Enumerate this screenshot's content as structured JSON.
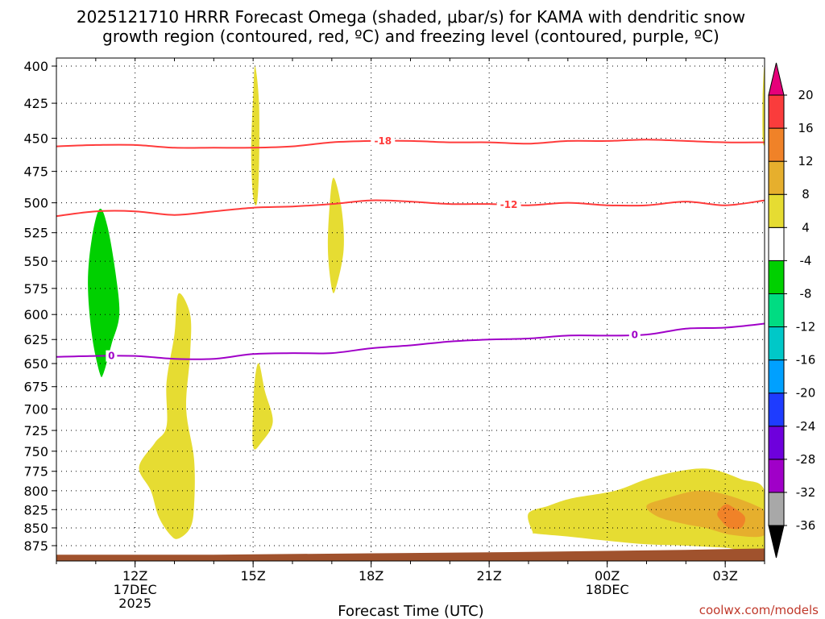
{
  "chart_data": {
    "type": "heatmap",
    "title_lines": [
      "2025121710 HRRR Forecast Omega (shaded, μbar/s) for KAMA with dendritic snow",
      "growth region (contoured, red, ºC) and freezing level (contoured, purple, ºC)"
    ],
    "xlabel": "Forecast Time (UTC)",
    "ylabel": "",
    "x_tick_labels": [
      {
        "lines": [
          "12Z",
          "17DEC",
          "2025"
        ],
        "hour": 2
      },
      {
        "lines": [
          "15Z"
        ],
        "hour": 5
      },
      {
        "lines": [
          "18Z"
        ],
        "hour": 8
      },
      {
        "lines": [
          "21Z"
        ],
        "hour": 11
      },
      {
        "lines": [
          "00Z",
          "18DEC"
        ],
        "hour": 14
      },
      {
        "lines": [
          "03Z"
        ],
        "hour": 17
      }
    ],
    "xlim_hours": [
      0,
      18
    ],
    "y_scale": "log-pressure",
    "ylim_mb": [
      890,
      395
    ],
    "y_ticks": [
      400,
      425,
      450,
      475,
      500,
      525,
      550,
      575,
      600,
      625,
      650,
      675,
      700,
      725,
      750,
      775,
      800,
      825,
      850,
      875
    ],
    "grid": true,
    "colorbar": {
      "levels": [
        -36,
        -32,
        -28,
        -24,
        -20,
        -16,
        -12,
        -8,
        -4,
        4,
        8,
        12,
        16,
        20
      ],
      "colors": [
        "#000000",
        "#a8a8a8",
        "#a000c8",
        "#6e00dc",
        "#1e3cff",
        "#00a0ff",
        "#00c8c8",
        "#00dc82",
        "#00d000",
        "#ffffff",
        "#e6dc32",
        "#e6af2d",
        "#f08228",
        "#fa3c3c",
        "#e6007a"
      ],
      "tick_labels": [
        "-36",
        "-32",
        "-28",
        "-24",
        "-20",
        "-16",
        "-12",
        "-8",
        "-4",
        "4",
        "8",
        "12",
        "16",
        "20"
      ]
    },
    "contours": [
      {
        "label": "-18",
        "color": "#ff3b3b",
        "points": [
          [
            0,
            456
          ],
          [
            1,
            455
          ],
          [
            2,
            455
          ],
          [
            3,
            457
          ],
          [
            4,
            457
          ],
          [
            5,
            457
          ],
          [
            6,
            456
          ],
          [
            7,
            453
          ],
          [
            8,
            452
          ],
          [
            9,
            452
          ],
          [
            10,
            453
          ],
          [
            11,
            453
          ],
          [
            12,
            454
          ],
          [
            13,
            452
          ],
          [
            14,
            452
          ],
          [
            15,
            451
          ],
          [
            16,
            452
          ],
          [
            17,
            453
          ],
          [
            18,
            453
          ]
        ]
      },
      {
        "label": "-12",
        "color": "#ff3b3b",
        "points": [
          [
            0,
            511
          ],
          [
            1,
            507
          ],
          [
            2,
            507
          ],
          [
            3,
            510
          ],
          [
            4,
            507
          ],
          [
            5,
            504
          ],
          [
            6,
            503
          ],
          [
            7,
            501
          ],
          [
            8,
            498
          ],
          [
            9,
            499
          ],
          [
            10,
            501
          ],
          [
            11,
            501
          ],
          [
            12,
            502
          ],
          [
            13,
            500
          ],
          [
            14,
            502
          ],
          [
            15,
            502
          ],
          [
            16,
            499
          ],
          [
            17,
            502
          ],
          [
            18,
            498
          ]
        ]
      },
      {
        "label": "0",
        "color": "#a000c8",
        "points": [
          [
            0,
            643
          ],
          [
            1,
            642
          ],
          [
            2,
            642
          ],
          [
            3,
            645
          ],
          [
            4,
            645
          ],
          [
            5,
            640
          ],
          [
            6,
            639
          ],
          [
            7,
            639
          ],
          [
            8,
            634
          ],
          [
            9,
            631
          ],
          [
            10,
            627
          ],
          [
            11,
            625
          ],
          [
            12,
            624
          ],
          [
            13,
            621
          ],
          [
            14,
            621
          ],
          [
            15,
            620
          ],
          [
            16,
            614
          ],
          [
            17,
            613
          ],
          [
            18,
            609
          ]
        ]
      }
    ],
    "omega_regions": [
      {
        "value": -4,
        "points": [
          [
            0.8,
            700
          ],
          [
            0.4,
            630
          ],
          [
            0.6,
            560
          ],
          [
            0.9,
            500
          ],
          [
            1.1,
            460
          ],
          [
            1.1,
            430
          ],
          [
            1.3,
            450
          ],
          [
            1.7,
            510
          ],
          [
            2.1,
            570
          ],
          [
            2.2,
            620
          ],
          [
            1.9,
            670
          ],
          [
            1.4,
            690
          ],
          [
            1.1,
            700
          ]
        ]
      },
      {
        "value": -8,
        "points": [
          [
            1.1,
            660
          ],
          [
            0.9,
            620
          ],
          [
            0.8,
            570
          ],
          [
            0.9,
            530
          ],
          [
            1.1,
            505
          ],
          [
            1.3,
            520
          ],
          [
            1.5,
            560
          ],
          [
            1.6,
            600
          ],
          [
            1.4,
            630
          ],
          [
            1.2,
            660
          ]
        ]
      },
      {
        "value": -4,
        "points": [
          [
            4.0,
            450
          ],
          [
            3.8,
            430
          ],
          [
            3.9,
            410
          ],
          [
            4.2,
            400
          ],
          [
            4.4,
            430
          ],
          [
            4.3,
            460
          ],
          [
            4.2,
            475
          ],
          [
            4.1,
            470
          ]
        ]
      },
      {
        "value": -4,
        "points": [
          [
            4.1,
            735
          ],
          [
            4.0,
            715
          ],
          [
            4.1,
            690
          ],
          [
            4.2,
            685
          ],
          [
            4.3,
            715
          ],
          [
            4.2,
            750
          ],
          [
            4.1,
            760
          ]
        ]
      },
      {
        "value": 4,
        "points": [
          [
            5.0,
            495
          ],
          [
            4.95,
            460
          ],
          [
            5.0,
            420
          ],
          [
            5.05,
            400
          ],
          [
            5.15,
            425
          ],
          [
            5.15,
            470
          ],
          [
            5.1,
            500
          ]
        ]
      },
      {
        "value": 4,
        "points": [
          [
            5.0,
            745
          ],
          [
            5.0,
            700
          ],
          [
            5.05,
            665
          ],
          [
            5.15,
            650
          ],
          [
            5.3,
            680
          ],
          [
            5.5,
            715
          ],
          [
            5.2,
            740
          ]
        ]
      },
      {
        "value": 4,
        "points": [
          [
            7.0,
            575
          ],
          [
            6.9,
            540
          ],
          [
            6.95,
            500
          ],
          [
            7.05,
            480
          ],
          [
            7.25,
            505
          ],
          [
            7.3,
            540
          ],
          [
            7.1,
            575
          ]
        ]
      },
      {
        "value": 4,
        "points": [
          [
            2.9,
            860
          ],
          [
            2.6,
            835
          ],
          [
            2.4,
            800
          ],
          [
            2.1,
            770
          ],
          [
            2.5,
            740
          ],
          [
            2.8,
            720
          ],
          [
            2.8,
            670
          ],
          [
            3.0,
            620
          ],
          [
            3.1,
            580
          ],
          [
            3.4,
            600
          ],
          [
            3.4,
            640
          ],
          [
            3.3,
            700
          ],
          [
            3.5,
            760
          ],
          [
            3.5,
            820
          ],
          [
            3.4,
            850
          ],
          [
            3.1,
            865
          ]
        ]
      },
      {
        "value": -4,
        "points": [
          [
            14.0,
            700
          ],
          [
            13.7,
            710
          ],
          [
            13.9,
            680
          ],
          [
            14.2,
            645
          ],
          [
            14.5,
            635
          ],
          [
            15.0,
            650
          ],
          [
            15.4,
            675
          ],
          [
            15.6,
            700
          ],
          [
            15.3,
            720
          ],
          [
            14.5,
            740
          ],
          [
            14.0,
            730
          ]
        ]
      },
      {
        "value": -4,
        "points": [
          [
            17.1,
            545
          ],
          [
            16.8,
            515
          ],
          [
            16.6,
            470
          ],
          [
            16.8,
            440
          ],
          [
            17.0,
            400
          ],
          [
            17.2,
            430
          ],
          [
            17.3,
            470
          ],
          [
            17.3,
            510
          ],
          [
            17.2,
            550
          ]
        ]
      },
      {
        "value": -4,
        "points": [
          [
            18.0,
            650
          ],
          [
            17.85,
            620
          ],
          [
            17.9,
            595
          ],
          [
            18.0,
            580
          ],
          [
            18.0,
            650
          ]
        ]
      },
      {
        "value": 4,
        "points": [
          [
            17.95,
            450
          ],
          [
            17.95,
            420
          ],
          [
            18.0,
            400
          ],
          [
            18.0,
            450
          ]
        ]
      },
      {
        "value": 4,
        "points": [
          [
            12.1,
            855
          ],
          [
            12.0,
            830
          ],
          [
            12.5,
            820
          ],
          [
            13.1,
            810
          ],
          [
            14.2,
            800
          ],
          [
            15.0,
            785
          ],
          [
            15.8,
            775
          ],
          [
            16.6,
            772
          ],
          [
            17.4,
            785
          ],
          [
            18.0,
            800
          ],
          [
            18.0,
            880
          ],
          [
            17.0,
            878
          ],
          [
            16.0,
            875
          ],
          [
            15.0,
            873
          ],
          [
            14.0,
            868
          ],
          [
            13.0,
            862
          ],
          [
            12.2,
            858
          ]
        ]
      },
      {
        "value": 8,
        "points": [
          [
            15.0,
            820
          ],
          [
            15.5,
            810
          ],
          [
            16.3,
            800
          ],
          [
            17.0,
            805
          ],
          [
            17.8,
            820
          ],
          [
            18.0,
            830
          ],
          [
            18.0,
            860
          ],
          [
            17.2,
            860
          ],
          [
            16.5,
            850
          ],
          [
            16.0,
            845
          ],
          [
            15.3,
            835
          ]
        ]
      },
      {
        "value": 12,
        "points": [
          [
            16.9,
            840
          ],
          [
            16.8,
            830
          ],
          [
            17.0,
            818
          ],
          [
            17.2,
            822
          ],
          [
            17.5,
            835
          ],
          [
            17.4,
            850
          ],
          [
            17.1,
            850
          ]
        ]
      }
    ],
    "terrain_color": "#a0522d",
    "terrain_top_mb": [
      [
        0,
        888
      ],
      [
        4,
        888
      ],
      [
        8,
        886
      ],
      [
        12,
        884
      ],
      [
        16,
        881
      ],
      [
        18,
        879
      ]
    ]
  },
  "credit": "coolwx.com/models"
}
